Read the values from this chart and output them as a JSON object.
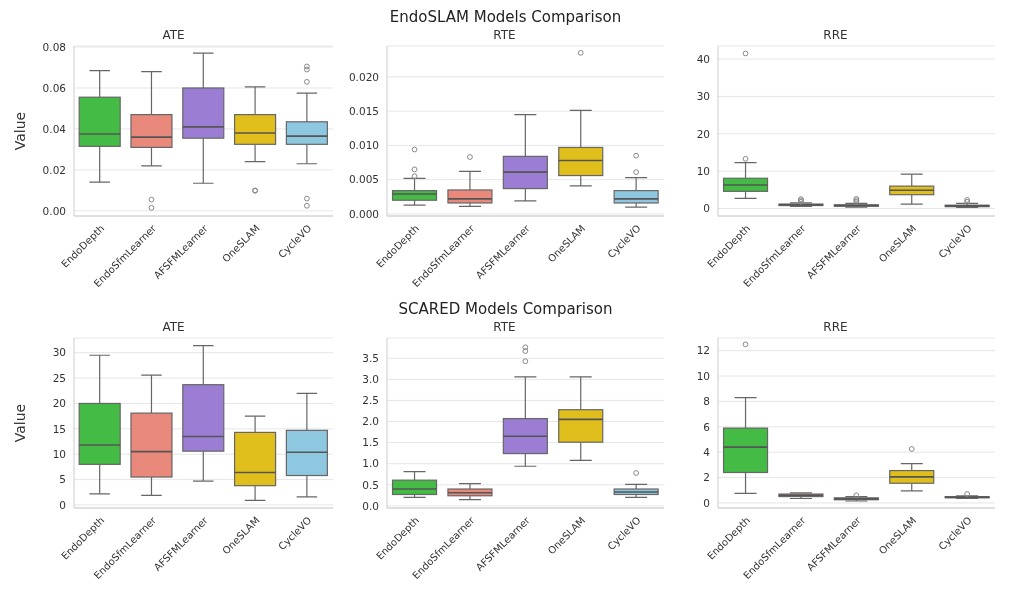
{
  "chart_data": [
    {
      "type": "box",
      "title": "ATE",
      "ylabel": "Value",
      "annotations": [
        "EndoSLAM Models Comparison"
      ],
      "categories": [
        "EndoDepth",
        "EndoSfmLearner",
        "AFSFMLearner",
        "OneSLAM",
        "CycleVO"
      ],
      "colors": [
        "#44bb44",
        "#e8897c",
        "#9b7dd4",
        "#e0bf1c",
        "#8ec8e0"
      ],
      "ylim": [
        -0.0025,
        0.0805
      ],
      "yticks": [
        {
          "value": 0,
          "label": "0.00"
        },
        {
          "value": 0.02,
          "label": "0.02"
        },
        {
          "value": 0.04,
          "label": "0.04"
        },
        {
          "value": 0.06,
          "label": "0.06"
        },
        {
          "value": 0.08,
          "label": "0.08"
        }
      ],
      "grid": "y",
      "boxes": [
        {
          "low": 0.014,
          "q1": 0.0315,
          "median": 0.0375,
          "q3": 0.0555,
          "high": 0.0685
        },
        {
          "low": 0.022,
          "q1": 0.031,
          "median": 0.036,
          "q3": 0.047,
          "high": 0.068,
          "outliers": [
            0.0055,
            0.0015
          ]
        },
        {
          "low": 0.0135,
          "q1": 0.0355,
          "median": 0.041,
          "q3": 0.06,
          "high": 0.077
        },
        {
          "low": 0.024,
          "q1": 0.0325,
          "median": 0.038,
          "q3": 0.047,
          "high": 0.0605,
          "outliers": [
            0.01,
            0.0098
          ]
        },
        {
          "low": 0.023,
          "q1": 0.0325,
          "median": 0.0365,
          "q3": 0.0435,
          "high": 0.0575,
          "outliers": [
            0.063,
            0.069,
            0.0705,
            0.006,
            0.0025
          ]
        }
      ]
    },
    {
      "type": "box",
      "title": "RTE",
      "categories": [
        "EndoDepth",
        "EndoSfmLearner",
        "AFSFMLearner",
        "OneSLAM",
        "CycleVO"
      ],
      "colors": [
        "#44bb44",
        "#e8897c",
        "#9b7dd4",
        "#e0bf1c",
        "#8ec8e0"
      ],
      "ylim": [
        -0.0003,
        0.0245
      ],
      "yticks": [
        {
          "value": 0,
          "label": "0.000"
        },
        {
          "value": 0.005,
          "label": "0.005"
        },
        {
          "value": 0.01,
          "label": "0.010"
        },
        {
          "value": 0.015,
          "label": "0.015"
        },
        {
          "value": 0.02,
          "label": "0.020"
        }
      ],
      "grid": "y",
      "boxes": [
        {
          "low": 0.0013,
          "q1": 0.002,
          "median": 0.0029,
          "q3": 0.0034,
          "high": 0.0052,
          "outliers": [
            0.0055,
            0.0065,
            0.0094
          ]
        },
        {
          "low": 0.0011,
          "q1": 0.0016,
          "median": 0.0022,
          "q3": 0.0035,
          "high": 0.0062,
          "outliers": [
            0.0083
          ]
        },
        {
          "low": 0.0019,
          "q1": 0.0037,
          "median": 0.0061,
          "q3": 0.0084,
          "high": 0.0145
        },
        {
          "low": 0.0041,
          "q1": 0.0056,
          "median": 0.0078,
          "q3": 0.0097,
          "high": 0.0151,
          "outliers": [
            0.0235
          ]
        },
        {
          "low": 0.001,
          "q1": 0.0016,
          "median": 0.0022,
          "q3": 0.0034,
          "high": 0.0053,
          "outliers": [
            0.0061,
            0.0085
          ]
        }
      ]
    },
    {
      "type": "box",
      "title": "RRE",
      "categories": [
        "EndoDepth",
        "EndoSfmLearner",
        "AFSFMLearner",
        "OneSLAM",
        "CycleVO"
      ],
      "colors": [
        "#44bb44",
        "#e8897c",
        "#9b7dd4",
        "#e0bf1c",
        "#8ec8e0"
      ],
      "ylim": [
        -2,
        43.5
      ],
      "yticks": [
        0,
        10,
        20,
        30,
        40
      ],
      "grid": "y",
      "boxes": [
        {
          "low": 2.7,
          "q1": 4.6,
          "median": 6.3,
          "q3": 8.1,
          "high": 12.3,
          "outliers": [
            13.3,
            41.5
          ]
        },
        {
          "low": 0.6,
          "q1": 0.8,
          "median": 1.0,
          "q3": 1.2,
          "high": 1.5,
          "outliers": [
            1.8,
            2.2,
            2.5
          ]
        },
        {
          "low": 0.4,
          "q1": 0.6,
          "median": 0.8,
          "q3": 1.0,
          "high": 1.4,
          "outliers": [
            1.8,
            2.2,
            2.6
          ]
        },
        {
          "low": 1.2,
          "q1": 3.7,
          "median": 4.9,
          "q3": 6.0,
          "high": 9.2
        },
        {
          "low": 0.3,
          "q1": 0.5,
          "median": 0.7,
          "q3": 0.9,
          "high": 1.4,
          "outliers": [
            1.8,
            2.3
          ]
        }
      ]
    },
    {
      "type": "box",
      "title": "ATE",
      "ylabel": "Value",
      "annotations": [
        "SCARED Models Comparison"
      ],
      "categories": [
        "EndoDepth",
        "EndoSfmLearner",
        "AFSFMLearner",
        "OneSLAM",
        "CycleVO"
      ],
      "colors": [
        "#44bb44",
        "#e8897c",
        "#9b7dd4",
        "#e0bf1c",
        "#8ec8e0"
      ],
      "ylim": [
        -0.6,
        32.9
      ],
      "yticks": [
        0,
        5,
        10,
        15,
        20,
        25,
        30
      ],
      "grid": "y",
      "boxes": [
        {
          "low": 2.2,
          "q1": 8.0,
          "median": 11.8,
          "q3": 20.0,
          "high": 29.5
        },
        {
          "low": 1.9,
          "q1": 5.5,
          "median": 10.5,
          "q3": 18.1,
          "high": 25.6
        },
        {
          "low": 4.7,
          "q1": 10.6,
          "median": 13.5,
          "q3": 23.7,
          "high": 31.4
        },
        {
          "low": 0.9,
          "q1": 3.8,
          "median": 6.4,
          "q3": 14.3,
          "high": 17.5
        },
        {
          "low": 1.6,
          "q1": 5.8,
          "median": 10.4,
          "q3": 14.7,
          "high": 22.0
        }
      ]
    },
    {
      "type": "box",
      "title": "RTE",
      "categories": [
        "EndoDepth",
        "EndoSfmLearner",
        "AFSFMLearner",
        "OneSLAM",
        "CycleVO"
      ],
      "colors": [
        "#44bb44",
        "#e8897c",
        "#9b7dd4",
        "#e0bf1c",
        "#8ec8e0"
      ],
      "ylim": [
        -0.05,
        3.98
      ],
      "yticks": [
        {
          "value": 0,
          "label": "0.0"
        },
        {
          "value": 0.5,
          "label": "0.5"
        },
        {
          "value": 1,
          "label": "1.0"
        },
        {
          "value": 1.5,
          "label": "1.5"
        },
        {
          "value": 2,
          "label": "2.0"
        },
        {
          "value": 2.5,
          "label": "2.5"
        },
        {
          "value": 3,
          "label": "3.0"
        },
        {
          "value": 3.5,
          "label": "3.5"
        }
      ],
      "grid": "y",
      "boxes": [
        {
          "low": 0.2,
          "q1": 0.27,
          "median": 0.4,
          "q3": 0.61,
          "high": 0.81
        },
        {
          "low": 0.15,
          "q1": 0.24,
          "median": 0.31,
          "q3": 0.4,
          "high": 0.53
        },
        {
          "low": 0.94,
          "q1": 1.24,
          "median": 1.65,
          "q3": 2.07,
          "high": 3.06,
          "outliers": [
            3.43,
            3.67,
            3.76
          ]
        },
        {
          "low": 1.08,
          "q1": 1.51,
          "median": 2.05,
          "q3": 2.28,
          "high": 3.06
        },
        {
          "low": 0.2,
          "q1": 0.27,
          "median": 0.33,
          "q3": 0.4,
          "high": 0.51,
          "outliers": [
            0.78
          ]
        }
      ]
    },
    {
      "type": "box",
      "title": "RRE",
      "categories": [
        "EndoDepth",
        "EndoSfmLearner",
        "AFSFMLearner",
        "OneSLAM",
        "CycleVO"
      ],
      "colors": [
        "#44bb44",
        "#e8897c",
        "#9b7dd4",
        "#e0bf1c",
        "#8ec8e0"
      ],
      "ylim": [
        -0.4,
        13.0
      ],
      "yticks": [
        0,
        2,
        4,
        6,
        8,
        10,
        12
      ],
      "grid": "y",
      "boxes": [
        {
          "low": 0.75,
          "q1": 2.4,
          "median": 4.4,
          "q3": 5.9,
          "high": 8.3,
          "outliers": [
            12.5
          ]
        },
        {
          "low": 0.35,
          "q1": 0.5,
          "median": 0.6,
          "q3": 0.7,
          "high": 0.8
        },
        {
          "low": 0.15,
          "q1": 0.25,
          "median": 0.32,
          "q3": 0.4,
          "high": 0.5,
          "outliers": [
            0.6
          ]
        },
        {
          "low": 0.95,
          "q1": 1.55,
          "median": 2.05,
          "q3": 2.55,
          "high": 3.1,
          "outliers": [
            4.25
          ]
        },
        {
          "low": 0.35,
          "q1": 0.4,
          "median": 0.45,
          "q3": 0.5,
          "high": 0.55,
          "outliers": [
            0.7
          ]
        }
      ]
    }
  ]
}
